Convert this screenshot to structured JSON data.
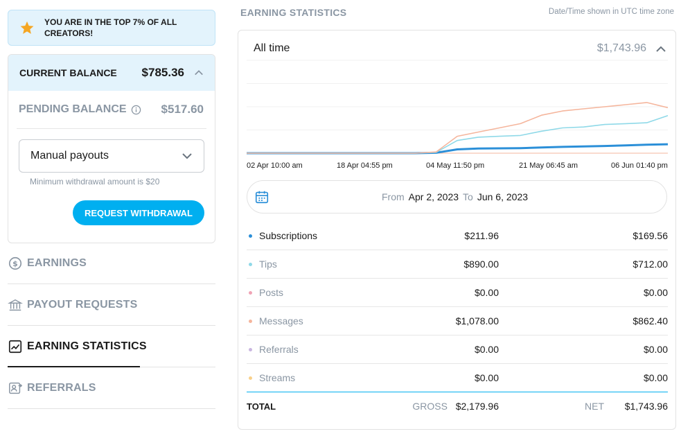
{
  "banner": {
    "text": "YOU ARE IN THE TOP 7% OF ALL CREATORS!"
  },
  "balance": {
    "current_label": "CURRENT BALANCE",
    "current_amount": "$785.36",
    "pending_label": "PENDING BALANCE",
    "pending_amount": "$517.60",
    "payout_select_value": "Manual payouts",
    "min_withdrawal_note": "Minimum withdrawal amount is $20",
    "withdraw_button": "REQUEST WITHDRAWAL"
  },
  "nav": {
    "items": [
      {
        "label": "EARNINGS"
      },
      {
        "label": "PAYOUT REQUESTS"
      },
      {
        "label": "EARNING STATISTICS"
      },
      {
        "label": "REFERRALS"
      }
    ]
  },
  "stats": {
    "title": "EARNING STATISTICS",
    "timezone_note": "Date/Time shown in UTC time zone",
    "period_label": "All time",
    "period_total": "$1,743.96",
    "date_range": {
      "from_label": "From",
      "from_value": "Apr 2, 2023",
      "to_label": "To",
      "to_value": "Jun 6, 2023"
    },
    "rows": [
      {
        "name": "Subscriptions",
        "gross": "$211.96",
        "net": "$169.56",
        "color": "#2b8fd8"
      },
      {
        "name": "Tips",
        "gross": "$890.00",
        "net": "$712.00",
        "color": "#8fd9e8"
      },
      {
        "name": "Posts",
        "gross": "$0.00",
        "net": "$0.00",
        "color": "#f0a3b5"
      },
      {
        "name": "Messages",
        "gross": "$1,078.00",
        "net": "$862.40",
        "color": "#f5b59c"
      },
      {
        "name": "Referrals",
        "gross": "$0.00",
        "net": "$0.00",
        "color": "#c9b6e0"
      },
      {
        "name": "Streams",
        "gross": "$0.00",
        "net": "$0.00",
        "color": "#f9d08a"
      }
    ],
    "total": {
      "label": "TOTAL",
      "gross_label": "GROSS",
      "gross_value": "$2,179.96",
      "net_label": "NET",
      "net_value": "$1,743.96"
    }
  },
  "chart_data": {
    "type": "line",
    "title": "",
    "xlabel": "",
    "ylabel": "",
    "categories": [
      "02 Apr 10:00 am",
      "18 Apr 04:55 pm",
      "04 May 11:50 pm",
      "21 May 06:45 am",
      "06 Jun 01:40 pm"
    ],
    "x": [
      0,
      0.1,
      0.2,
      0.3,
      0.4,
      0.45,
      0.5,
      0.55,
      0.6,
      0.65,
      0.7,
      0.75,
      0.8,
      0.85,
      0.9,
      0.95,
      1.0
    ],
    "ylim": [
      0,
      2200
    ],
    "series": [
      {
        "name": "Subscriptions",
        "color": "#2b8fd8",
        "values": [
          0,
          0,
          0,
          0,
          0,
          10,
          90,
          110,
          115,
          120,
          135,
          150,
          160,
          170,
          185,
          200,
          212
        ]
      },
      {
        "name": "Tips",
        "color": "#8fd9e8",
        "values": [
          0,
          0,
          0,
          0,
          0,
          20,
          300,
          380,
          400,
          420,
          520,
          600,
          620,
          680,
          700,
          720,
          890
        ]
      },
      {
        "name": "Messages",
        "color": "#f5b59c",
        "values": [
          0,
          0,
          0,
          0,
          0,
          30,
          400,
          500,
          600,
          700,
          900,
          1000,
          1050,
          1100,
          1150,
          1200,
          1078
        ]
      }
    ]
  }
}
